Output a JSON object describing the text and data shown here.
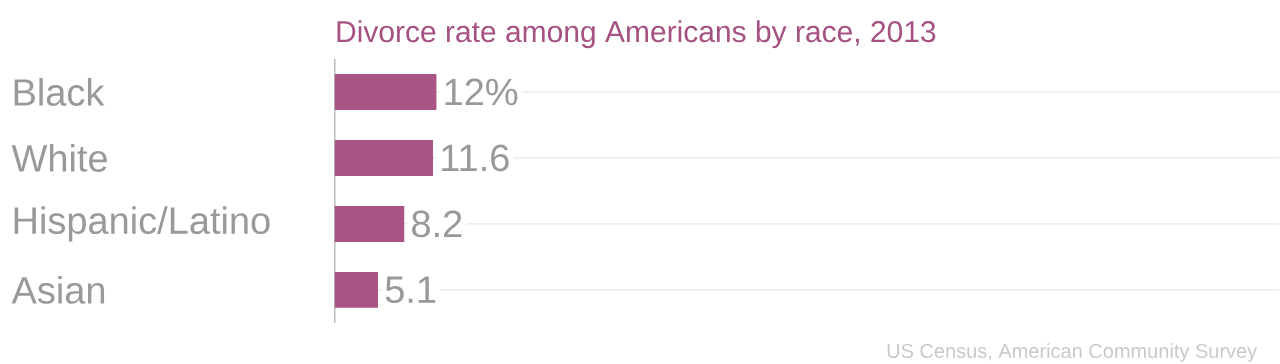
{
  "chart_data": {
    "type": "bar",
    "orientation": "horizontal",
    "title": "Divorce rate among Americans by race, 2013",
    "categories": [
      "Black",
      "White",
      "Hispanic/Latino",
      "Asian"
    ],
    "values": [
      12,
      11.6,
      8.2,
      5.1
    ],
    "value_labels": [
      "12%",
      "11.6",
      "8.2",
      "5.1"
    ],
    "color": "#a85585",
    "grid": "y",
    "annotations": [
      "US Census, American Community Survey"
    ]
  }
}
